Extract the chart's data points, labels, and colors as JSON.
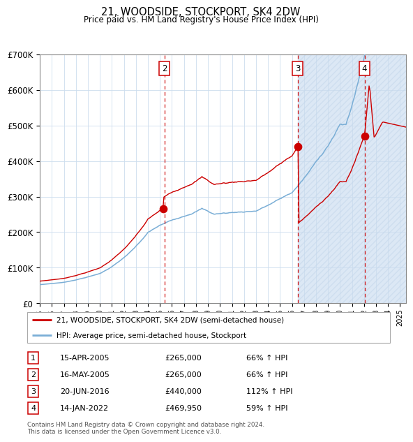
{
  "title": "21, WOODSIDE, STOCKPORT, SK4 2DW",
  "subtitle": "Price paid vs. HM Land Registry's House Price Index (HPI)",
  "footnote": "Contains HM Land Registry data © Crown copyright and database right 2024.\nThis data is licensed under the Open Government Licence v3.0.",
  "legend_line1": "21, WOODSIDE, STOCKPORT, SK4 2DW (semi-detached house)",
  "legend_line2": "HPI: Average price, semi-detached house, Stockport",
  "transactions": [
    {
      "num": 1,
      "date": "15-APR-2005",
      "price": 265000,
      "pct": "66%",
      "dir": "↑",
      "year_x": 2005.29
    },
    {
      "num": 2,
      "date": "16-MAY-2005",
      "price": 265000,
      "pct": "66%",
      "dir": "↑",
      "year_x": 2005.37
    },
    {
      "num": 3,
      "date": "20-JUN-2016",
      "price": 440000,
      "pct": "112%",
      "dir": "↑",
      "year_x": 2016.47
    },
    {
      "num": 4,
      "date": "14-JAN-2022",
      "price": 469950,
      "pct": "59%",
      "dir": "↑",
      "year_x": 2022.04
    }
  ],
  "vline_years": [
    2005.37,
    2016.47,
    2022.04
  ],
  "vline_labels": [
    "2",
    "3",
    "4"
  ],
  "shade_start": 2016.47,
  "ylim": [
    0,
    700000
  ],
  "xlim_start": 1995.0,
  "xlim_end": 2025.5,
  "hpi_color": "#7aaed6",
  "price_color": "#cc0000",
  "grid_color": "#ccddee",
  "shade_color": "#dce8f5",
  "background_color": "#ffffff"
}
